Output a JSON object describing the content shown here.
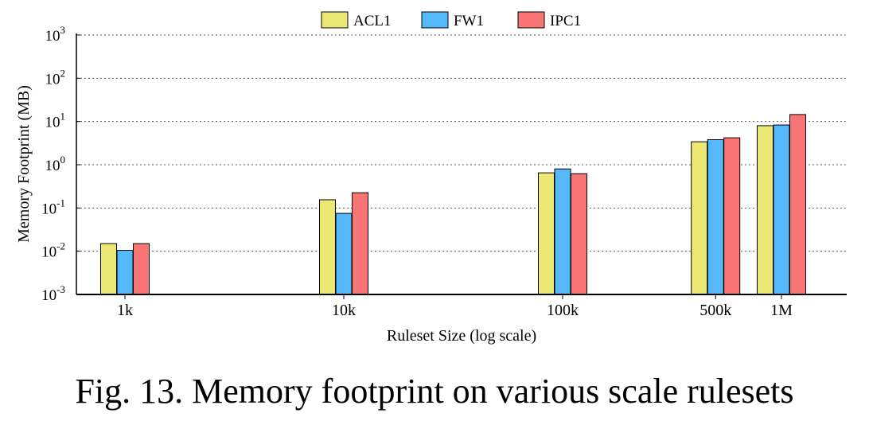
{
  "caption": "Fig. 13. Memory footprint on various scale rulesets",
  "chart_data": {
    "type": "bar",
    "title": "",
    "xlabel": "Ruleset Size (log scale)",
    "ylabel": "Memory Footprint (MB)",
    "yscale": "log",
    "ylim": [
      0.001,
      1000
    ],
    "yticks": [
      {
        "value": 0.001,
        "base": "10",
        "exp": "-3"
      },
      {
        "value": 0.01,
        "base": "10",
        "exp": "-2"
      },
      {
        "value": 0.1,
        "base": "10",
        "exp": "-1"
      },
      {
        "value": 1,
        "base": "10",
        "exp": "0"
      },
      {
        "value": 10,
        "base": "10",
        "exp": "1"
      },
      {
        "value": 100,
        "base": "10",
        "exp": "2"
      },
      {
        "value": 1000,
        "base": "10",
        "exp": "3"
      }
    ],
    "xscale": "log",
    "x": [
      1000,
      10000,
      100000,
      500000,
      1000000
    ],
    "categories": [
      "1k",
      "10k",
      "100k",
      "500k",
      "1M"
    ],
    "grid": true,
    "legend_position": "top-center",
    "series": [
      {
        "name": "ACL1",
        "color": "#ece874",
        "values": [
          0.015,
          0.155,
          0.65,
          3.4,
          8.0
        ]
      },
      {
        "name": "FW1",
        "color": "#55b8fb",
        "values": [
          0.0105,
          0.075,
          0.8,
          3.8,
          8.3
        ]
      },
      {
        "name": "IPC1",
        "color": "#f97475",
        "values": [
          0.015,
          0.225,
          0.62,
          4.2,
          14.5
        ]
      }
    ]
  }
}
